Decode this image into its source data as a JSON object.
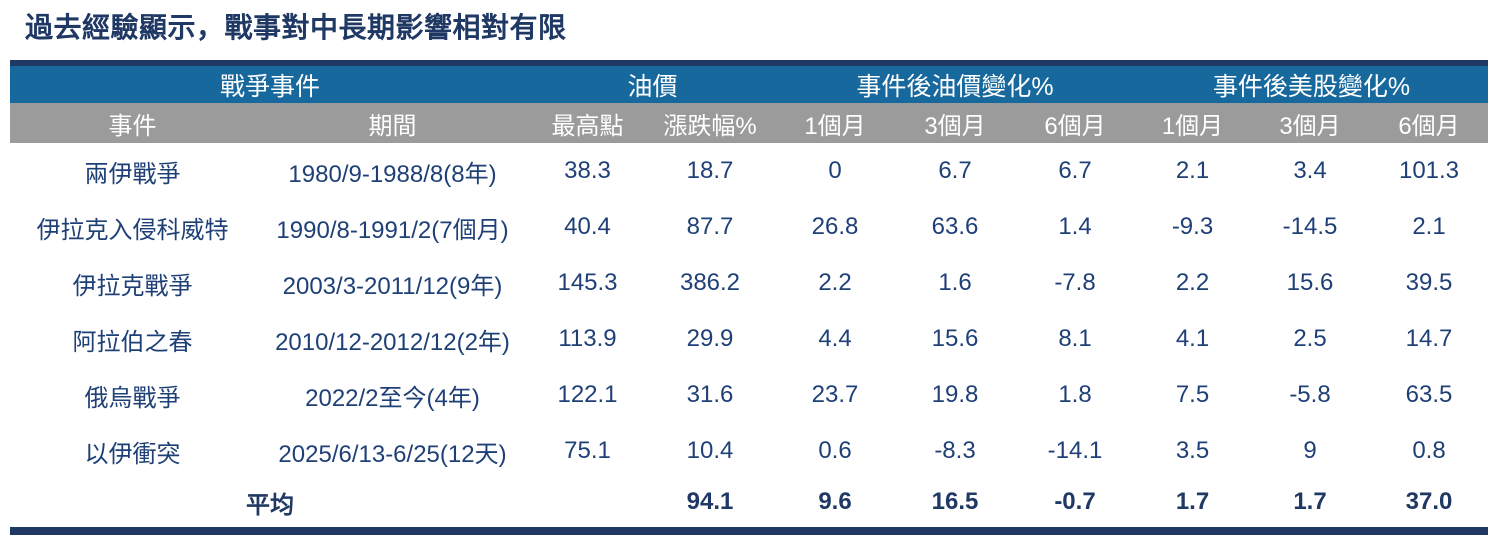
{
  "title": "過去經驗顯示，戰事對中長期影響相對有限",
  "colors": {
    "navy": "#1F3864",
    "header_blue": "#17689D",
    "header_gray": "#9B9B9B",
    "data_text": "#1F4077"
  },
  "chart_data": {
    "type": "table",
    "title": "過去經驗顯示，戰事對中長期影響相對有限",
    "group_headers": [
      {
        "label": "戰爭事件",
        "span": 2
      },
      {
        "label": "油價",
        "span": 2
      },
      {
        "label": "事件後油價變化%",
        "span": 3
      },
      {
        "label": "事件後美股變化%",
        "span": 3
      }
    ],
    "sub_headers": [
      "事件",
      "期間",
      "最高點",
      "漲跌幅%",
      "1個月",
      "3個月",
      "6個月",
      "1個月",
      "3個月",
      "6個月"
    ],
    "rows": [
      [
        "兩伊戰爭",
        "1980/9-1988/8(8年)",
        "38.3",
        "18.7",
        "0",
        "6.7",
        "6.7",
        "2.1",
        "3.4",
        "101.3"
      ],
      [
        "伊拉克入侵科威特",
        "1990/8-1991/2(7個月)",
        "40.4",
        "87.7",
        "26.8",
        "63.6",
        "1.4",
        "-9.3",
        "-14.5",
        "2.1"
      ],
      [
        "伊拉克戰爭",
        "2003/3-2011/12(9年)",
        "145.3",
        "386.2",
        "2.2",
        "1.6",
        "-7.8",
        "2.2",
        "15.6",
        "39.5"
      ],
      [
        "阿拉伯之春",
        "2010/12-2012/12(2年)",
        "113.9",
        "29.9",
        "4.4",
        "15.6",
        "8.1",
        "4.1",
        "2.5",
        "14.7"
      ],
      [
        "俄烏戰爭",
        "2022/2至今(4年)",
        "122.1",
        "31.6",
        "23.7",
        "19.8",
        "1.8",
        "7.5",
        "-5.8",
        "63.5"
      ],
      [
        "以伊衝突",
        "2025/6/13-6/25(12天)",
        "75.1",
        "10.4",
        "0.6",
        "-8.3",
        "-14.1",
        "3.5",
        "9",
        "0.8"
      ]
    ],
    "average_row": {
      "label": "平均",
      "values": [
        "",
        "94.1",
        "9.6",
        "16.5",
        "-0.7",
        "1.7",
        "1.7",
        "37.0"
      ]
    }
  }
}
